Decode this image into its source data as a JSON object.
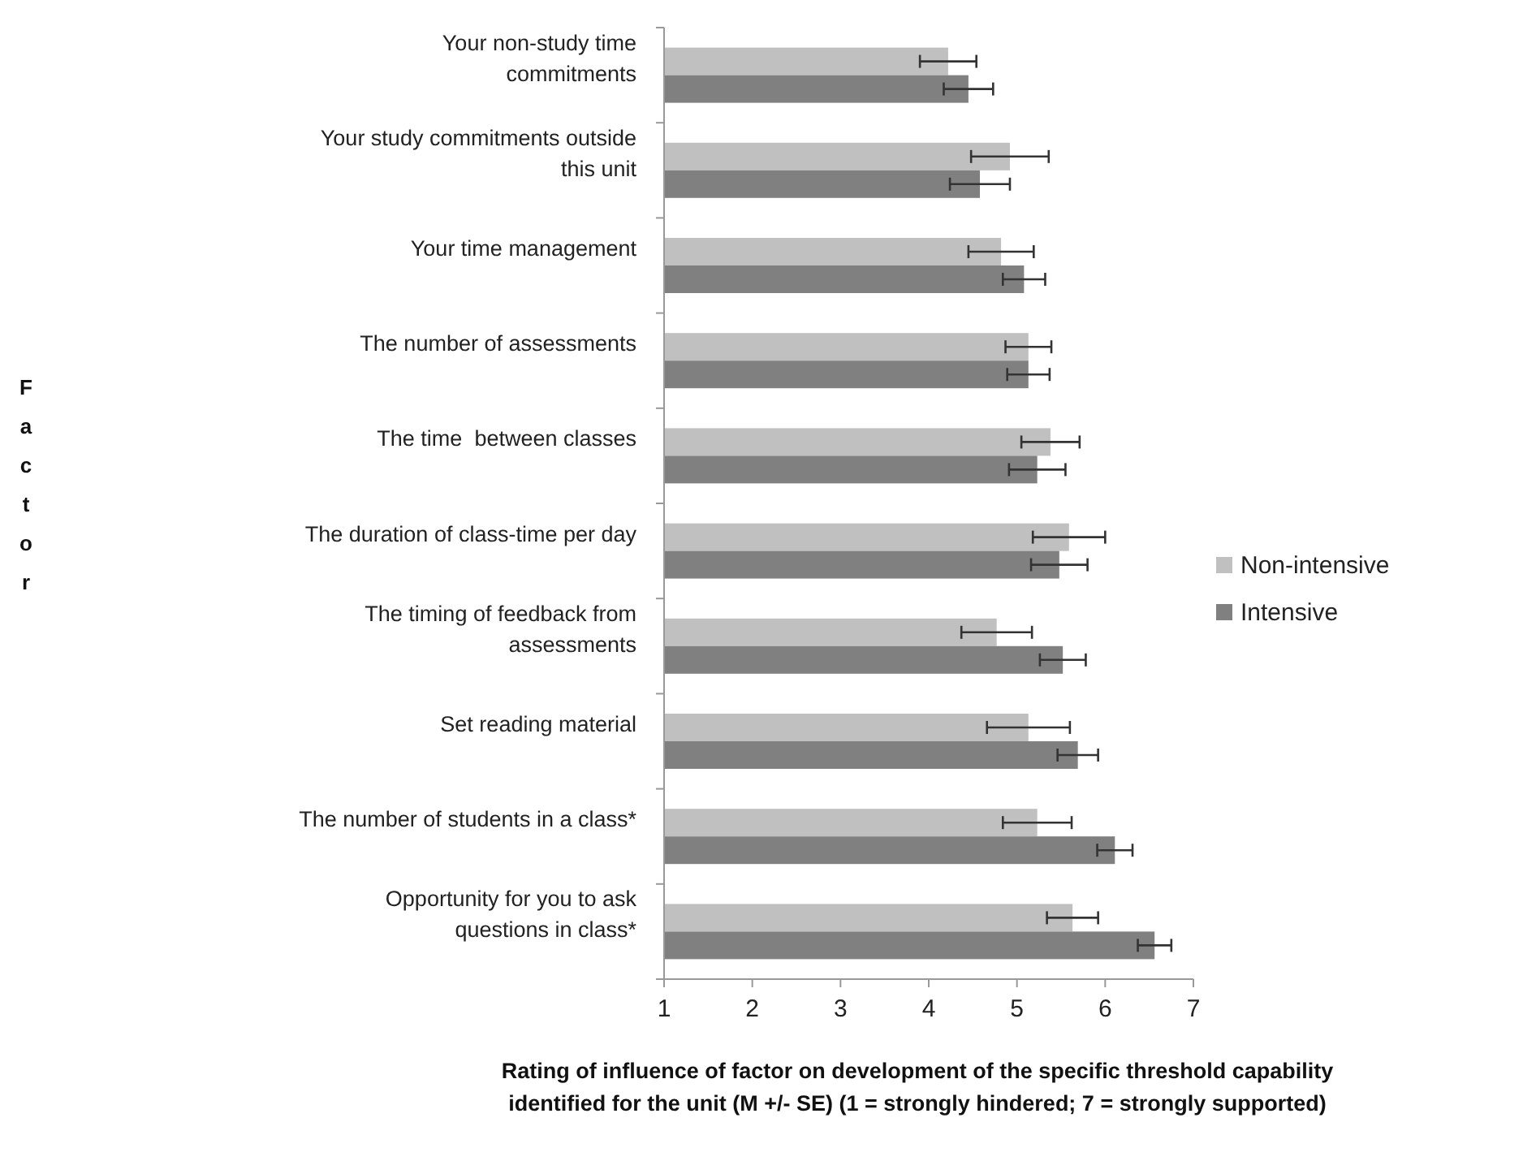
{
  "chart_data": {
    "type": "bar",
    "orientation": "horizontal",
    "categories": [
      "Your non-study time\ncommitments",
      "Your study commitments outside\nthis unit",
      "Your time management",
      "The number of assessments",
      "The time  between classes",
      "The duration of class-time per day",
      "The timing of feedback from\nassessments",
      "Set reading material",
      "The number of students in a class*",
      "Opportunity for you to ask\nquestions in class*"
    ],
    "series": [
      {
        "name": "Non-intensive",
        "color": "#c0c0c0",
        "values": [
          4.22,
          4.92,
          4.82,
          5.13,
          5.38,
          5.59,
          4.77,
          5.13,
          5.23,
          5.63
        ],
        "errors": [
          0.32,
          0.44,
          0.37,
          0.26,
          0.33,
          0.41,
          0.4,
          0.47,
          0.39,
          0.29
        ]
      },
      {
        "name": "Intensive",
        "color": "#808080",
        "values": [
          4.45,
          4.58,
          5.08,
          5.13,
          5.23,
          5.48,
          5.52,
          5.69,
          6.11,
          6.56
        ],
        "errors": [
          0.28,
          0.34,
          0.24,
          0.24,
          0.32,
          0.32,
          0.26,
          0.23,
          0.2,
          0.19
        ]
      }
    ],
    "xlim": [
      1,
      7
    ],
    "xticks": [
      1,
      2,
      3,
      4,
      5,
      6,
      7
    ],
    "annotations": [
      "Factor"
    ],
    "xlabel": "Rating of influence of factor on development of the specific threshold capability identified for the unit (M +/- SE) (1 = strongly hindered; 7 = strongly supported)",
    "legend": "right",
    "grid": false
  }
}
